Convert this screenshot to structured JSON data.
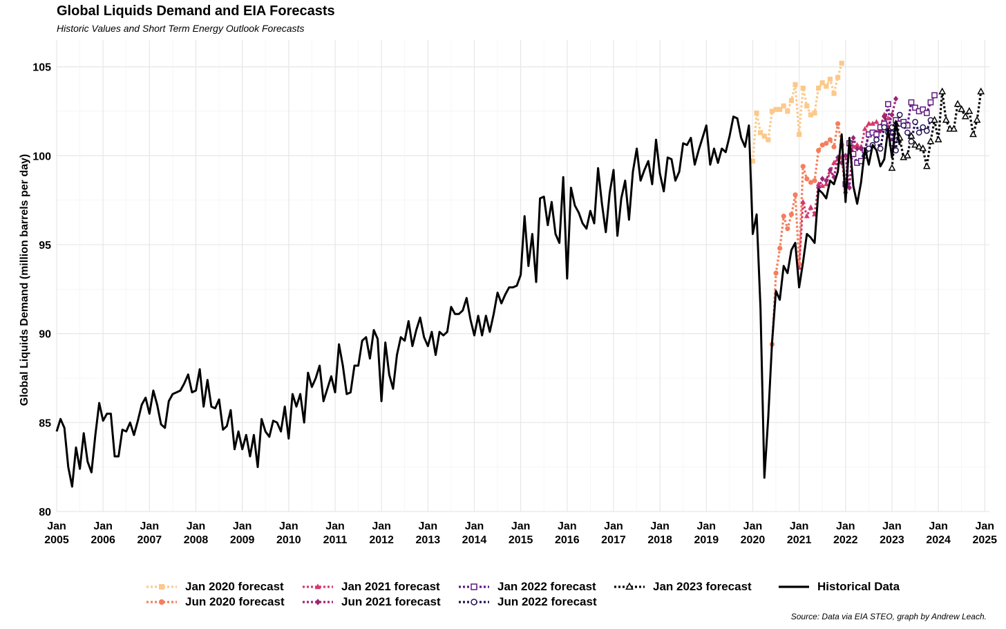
{
  "chart_data": {
    "type": "line",
    "title": "Global Liquids Demand and EIA Forecasts",
    "subtitle": "Historic Values and Short Term Energy Outlook Forecasts",
    "ylabel": "Global Liquids Demand (million barrels per day)",
    "xlabel": "",
    "source": "Source: Data via EIA STEO, graph by Andrew Leach.",
    "ylim": [
      80,
      106.5
    ],
    "xlim": [
      2005.0,
      2025.1
    ],
    "y_ticks": [
      80,
      85,
      90,
      95,
      100,
      105
    ],
    "x_ticks": [
      {
        "value": 2005,
        "month": "Jan",
        "year": "2005"
      },
      {
        "value": 2006,
        "month": "Jan",
        "year": "2006"
      },
      {
        "value": 2007,
        "month": "Jan",
        "year": "2007"
      },
      {
        "value": 2008,
        "month": "Jan",
        "year": "2008"
      },
      {
        "value": 2009,
        "month": "Jan",
        "year": "2009"
      },
      {
        "value": 2010,
        "month": "Jan",
        "year": "2010"
      },
      {
        "value": 2011,
        "month": "Jan",
        "year": "2011"
      },
      {
        "value": 2012,
        "month": "Jan",
        "year": "2012"
      },
      {
        "value": 2013,
        "month": "Jan",
        "year": "2013"
      },
      {
        "value": 2014,
        "month": "Jan",
        "year": "2014"
      },
      {
        "value": 2015,
        "month": "Jan",
        "year": "2015"
      },
      {
        "value": 2016,
        "month": "Jan",
        "year": "2016"
      },
      {
        "value": 2017,
        "month": "Jan",
        "year": "2017"
      },
      {
        "value": 2018,
        "month": "Jan",
        "year": "2018"
      },
      {
        "value": 2019,
        "month": "Jan",
        "year": "2019"
      },
      {
        "value": 2020,
        "month": "Jan",
        "year": "2020"
      },
      {
        "value": 2021,
        "month": "Jan",
        "year": "2021"
      },
      {
        "value": 2022,
        "month": "Jan",
        "year": "2022"
      },
      {
        "value": 2023,
        "month": "Jan",
        "year": "2023"
      },
      {
        "value": 2024,
        "month": "Jan",
        "year": "2024"
      },
      {
        "value": 2025,
        "month": "Jan",
        "year": "2025"
      }
    ],
    "grid": true,
    "legend_position": "bottom",
    "series": [
      {
        "name": "Historical Data",
        "color": "#000000",
        "style": "solid",
        "marker": "none",
        "x_start": 2005.0,
        "step": 0.0833333,
        "values": [
          84.5,
          85.2,
          84.7,
          82.5,
          81.4,
          83.6,
          82.4,
          84.4,
          82.8,
          82.2,
          84.3,
          86.1,
          85.1,
          85.5,
          85.5,
          83.1,
          83.1,
          84.6,
          84.5,
          85.0,
          84.3,
          85.1,
          86.0,
          86.4,
          85.5,
          86.8,
          86.0,
          84.9,
          84.7,
          86.2,
          86.6,
          86.7,
          86.8,
          87.2,
          87.7,
          86.7,
          86.8,
          88.0,
          85.9,
          87.4,
          85.9,
          85.8,
          86.3,
          84.6,
          84.8,
          85.7,
          83.5,
          84.5,
          83.5,
          84.3,
          83.1,
          84.3,
          82.5,
          85.2,
          84.5,
          84.2,
          85.1,
          85.0,
          84.5,
          85.9,
          84.1,
          86.6,
          85.9,
          86.6,
          85.0,
          87.8,
          87.0,
          87.5,
          88.2,
          86.2,
          86.9,
          87.6,
          86.7,
          89.4,
          88.2,
          86.6,
          86.7,
          88.2,
          88.2,
          89.6,
          89.8,
          88.6,
          90.2,
          89.7,
          86.2,
          89.5,
          87.7,
          86.9,
          88.8,
          89.8,
          89.6,
          90.7,
          89.3,
          90.2,
          90.9,
          89.8,
          89.3,
          90.1,
          88.8,
          90.1,
          89.9,
          90.1,
          91.5,
          91.1,
          91.1,
          91.3,
          92.0,
          90.8,
          89.9,
          91.0,
          89.9,
          91.0,
          90.1,
          91.1,
          92.3,
          91.7,
          92.2,
          92.6,
          92.6,
          92.7,
          93.3,
          96.6,
          93.8,
          95.6,
          92.9,
          97.6,
          97.7,
          96.1,
          97.4,
          95.6,
          95.1,
          98.8,
          93.1,
          98.2,
          97.2,
          96.8,
          96.2,
          95.9,
          96.9,
          96.2,
          99.3,
          97.3,
          95.7,
          97.9,
          99.2,
          95.5,
          97.6,
          98.6,
          96.4,
          99.1,
          100.4,
          98.6,
          99.2,
          99.7,
          98.4,
          100.9,
          99.0,
          98.0,
          99.9,
          99.8,
          98.6,
          99.1,
          100.7,
          100.6,
          101.0,
          99.5,
          100.3,
          101.0,
          101.7,
          99.5,
          100.4,
          99.6,
          100.4,
          100.2,
          101.1,
          102.2,
          102.1,
          101.0,
          100.5,
          101.7,
          95.6,
          96.7,
          91.4,
          81.9,
          85.3,
          89.5,
          92.4,
          91.9,
          93.8,
          93.4,
          94.7,
          95.1,
          92.6,
          94.0,
          95.6,
          95.4,
          95.1,
          98.1,
          97.9,
          97.6,
          98.6,
          98.4,
          99.1,
          101.2,
          97.4,
          101.0,
          98.3,
          97.3,
          98.5,
          100.4,
          99.5,
          100.6,
          100.3,
          99.4,
          99.8,
          101.5,
          99.9,
          101.9,
          100.6
        ]
      },
      {
        "name": "Jan 2020 forecast",
        "color": "#FCC98A",
        "style": "dotted",
        "marker": "square",
        "x_start": 2020.0,
        "step": 0.0833333,
        "values": [
          99.7,
          102.4,
          101.3,
          101.1,
          100.9,
          102.5,
          102.6,
          102.6,
          102.8,
          102.5,
          103.1,
          104.0,
          101.2,
          103.8,
          102.8,
          102.3,
          102.4,
          103.8,
          104.1,
          103.9,
          104.3,
          103.5,
          104.4,
          105.2
        ]
      },
      {
        "name": "Jun 2020 forecast",
        "color": "#F47E5C",
        "style": "dotted",
        "marker": "circle",
        "x_start": 2020.417,
        "step": 0.0833333,
        "values": [
          89.4,
          93.4,
          94.8,
          96.6,
          95.9,
          96.7,
          97.8,
          93.9,
          99.4,
          98.7,
          98.5,
          98.6,
          100.3,
          100.6,
          100.7,
          100.9,
          100.5,
          101.8,
          100.6
        ]
      },
      {
        "name": "Jan 2021 forecast",
        "color": "#D7386B",
        "style": "dotted",
        "marker": "triangle",
        "x_start": 2021.0,
        "step": 0.0833333,
        "values": [
          93.7,
          97.4,
          96.6,
          97.1,
          96.7,
          98.4,
          98.3,
          98.4,
          99.1,
          99.6,
          99.8,
          99.9,
          98.0,
          100.7,
          100.5,
          100.6,
          100.5,
          101.5,
          101.8,
          101.8,
          101.9,
          101.6,
          102.3,
          102.1
        ]
      },
      {
        "name": "Jun 2021 forecast",
        "color": "#9D2473",
        "style": "dotted",
        "marker": "diamond",
        "x_start": 2021.417,
        "step": 0.0833333,
        "values": [
          98.2,
          98.7,
          98.6,
          99.2,
          98.8,
          99.9,
          99.6,
          100.0,
          98.2,
          101.0,
          100.4,
          100.4,
          100.3,
          101.2,
          101.3,
          101.3,
          101.4,
          102.2,
          101.6,
          102.3,
          103.2
        ]
      },
      {
        "name": "Jan 2022 forecast",
        "color": "#5F1881",
        "style": "dotted",
        "marker": "square-open",
        "x_start": 2022.0,
        "step": 0.0833333,
        "values": [
          98.4,
          100.7,
          100.1,
          99.6,
          99.7,
          100.3,
          101.2,
          101.3,
          101.2,
          101.6,
          101.8,
          102.9,
          100.7,
          102.0,
          101.8,
          101.9,
          101.7,
          103.0,
          102.7,
          102.5,
          102.6,
          102.4,
          103.0,
          103.4
        ]
      },
      {
        "name": "Jun 2022 forecast",
        "color": "#221150",
        "style": "dotted",
        "marker": "circle-open",
        "x_start": 2022.417,
        "step": 0.0833333,
        "values": [
          100.0,
          100.4,
          100.6,
          100.9,
          100.4,
          101.6,
          101.3,
          101.6,
          100.3,
          102.3,
          101.7,
          101.3,
          100.8,
          101.9,
          101.3,
          101.6,
          101.4,
          102.0
        ]
      },
      {
        "name": "Jan 2023 forecast",
        "color": "#000000",
        "style": "dotted",
        "marker": "triangle-open",
        "x_start": 2023.0,
        "step": 0.0833333,
        "values": [
          99.3,
          101.8,
          101.0,
          99.9,
          100.0,
          101.1,
          100.6,
          100.5,
          100.4,
          99.4,
          100.8,
          102.0,
          100.9,
          103.6,
          102.0,
          101.5,
          101.5,
          102.9,
          102.6,
          102.2,
          102.5,
          101.2,
          102.0,
          103.6
        ]
      }
    ]
  },
  "legend": {
    "items": [
      {
        "label": "Jan 2020 forecast",
        "series": 1
      },
      {
        "label": "Jun 2020 forecast",
        "series": 2
      },
      {
        "label": "Jan 2021 forecast",
        "series": 3
      },
      {
        "label": "Jun 2021 forecast",
        "series": 4
      },
      {
        "label": "Jan 2022 forecast",
        "series": 5
      },
      {
        "label": "Jun 2022 forecast",
        "series": 6
      },
      {
        "label": "Jan 2023 forecast",
        "series": 7
      },
      {
        "label": "Historical Data",
        "series": 0
      }
    ]
  }
}
